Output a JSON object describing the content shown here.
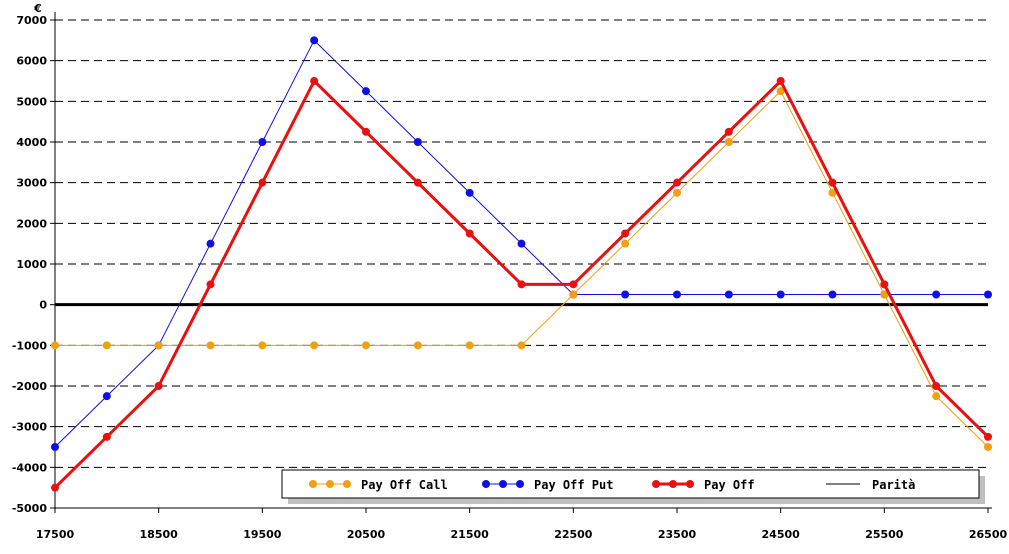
{
  "chart_data": {
    "type": "line",
    "ylabel": "€",
    "xlim": [
      17500,
      26500
    ],
    "ylim": [
      -5000,
      7000
    ],
    "x_ticks": [
      17500,
      18500,
      19500,
      20500,
      21500,
      22500,
      23500,
      24500,
      25500,
      26500
    ],
    "y_ticks": [
      7000,
      6000,
      5000,
      4000,
      3000,
      2000,
      1000,
      0,
      -1000,
      -2000,
      -3000,
      -4000,
      -5000
    ],
    "grid": "horizontal dashed",
    "legend_position": "bottom",
    "x": [
      17500,
      18000,
      18500,
      19000,
      19500,
      20000,
      20500,
      21000,
      21500,
      22000,
      22500,
      23000,
      23500,
      24000,
      24500,
      25000,
      25500,
      26000,
      26500
    ],
    "series": [
      {
        "name": "Pay Off Call",
        "color": "#f0a010",
        "line_width": 1,
        "markers": true,
        "values": [
          -1000,
          -1000,
          -1000,
          -1000,
          -1000,
          -1000,
          -1000,
          -1000,
          -1000,
          -1000,
          250,
          1500,
          2750,
          4000,
          5250,
          2750,
          250,
          -2250,
          -3500
        ]
      },
      {
        "name": "Pay Off Put",
        "color": "#1010e0",
        "line_width": 1,
        "markers": true,
        "values": [
          -3500,
          -2250,
          -1000,
          1500,
          4000,
          6500,
          5250,
          4000,
          2750,
          1500,
          250,
          250,
          250,
          250,
          250,
          250,
          250,
          250,
          250
        ]
      },
      {
        "name": "Pay Off",
        "color": "#e81010",
        "line_width": 3,
        "markers": true,
        "values": [
          -4500,
          -3250,
          -2000,
          500,
          3000,
          5500,
          4250,
          3000,
          1750,
          500,
          500,
          1750,
          3000,
          4250,
          5500,
          3000,
          500,
          -2000,
          -3250
        ]
      },
      {
        "name": "Parità",
        "color": "#000000",
        "line_width": 3,
        "markers": false,
        "values": [
          0,
          0,
          0,
          0,
          0,
          0,
          0,
          0,
          0,
          0,
          0,
          0,
          0,
          0,
          0,
          0,
          0,
          0,
          0
        ]
      }
    ]
  }
}
